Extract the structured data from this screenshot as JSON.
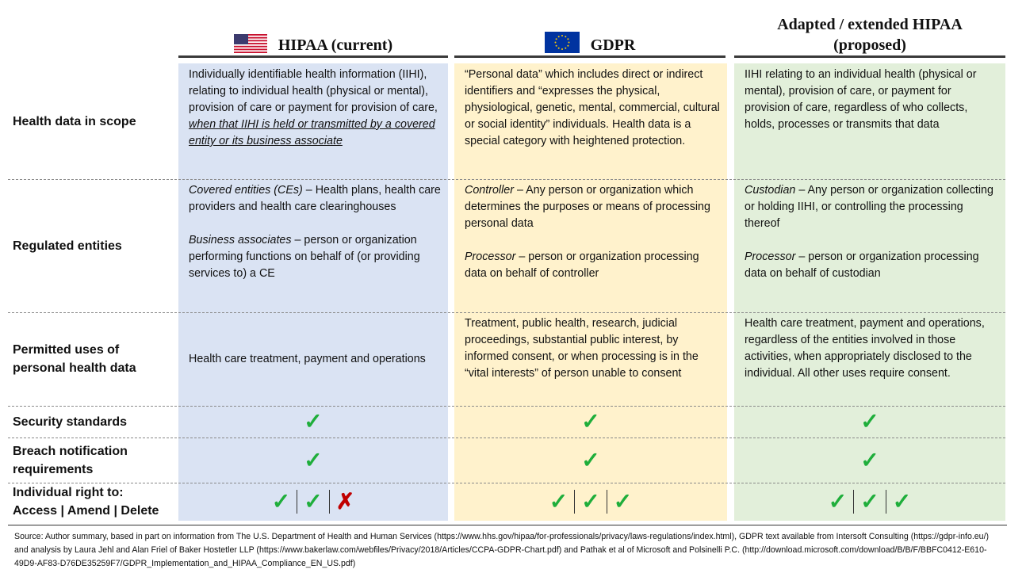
{
  "columns": [
    {
      "title": [
        "HIPAA (current)"
      ]
    },
    {
      "title": [
        "GDPR"
      ]
    },
    {
      "title": [
        "Adapted / extended HIPAA",
        "(proposed)"
      ]
    }
  ],
  "rows": [
    {
      "label": [
        "Health data in scope"
      ],
      "cells": [
        [
          [
            {
              "text": "Individually identifiable health information (IIHI), relating to individual health (physical or mental), provision of care or payment for provision of care, "
            },
            {
              "text": "when that IIHI is held or transmitted by a covered entity or its business associate",
              "style": "italic underline"
            }
          ]
        ],
        [
          [
            {
              "text": "“Personal data” which includes direct or indirect identifiers and “expresses the physical, physiological, genetic, mental, commercial, cultural or social identity” individuals.  Health data is a special category with heightened protection."
            }
          ]
        ],
        [
          [
            {
              "text": "IIHI relating to an individual health (physical or mental), provision of care, or payment for provision of care, regardless of who collects, holds, processes or transmits that data"
            }
          ]
        ]
      ]
    },
    {
      "label": [
        "Regulated entities"
      ],
      "cells": [
        [
          [
            {
              "text": "Covered entities (CEs)",
              "style": "italic"
            },
            {
              "text": " – Health plans, health care providers and health care clearinghouses"
            }
          ],
          [
            {
              "text": "Business associates",
              "style": "italic"
            },
            {
              "text": " – person or organization performing functions on behalf of (or providing services to) a CE"
            }
          ]
        ],
        [
          [
            {
              "text": "Controller",
              "style": "italic"
            },
            {
              "text": " – Any person or organization which determines the purposes or means of processing personal data"
            }
          ],
          [
            {
              "text": "Processor",
              "style": "italic"
            },
            {
              "text": " – person or organization processing data on behalf of controller"
            }
          ]
        ],
        [
          [
            {
              "text": "Custodian",
              "style": "italic"
            },
            {
              "text": " – Any person or organization collecting or holding IIHI, or controlling the processing thereof"
            }
          ],
          [
            {
              "text": "Processor",
              "style": "italic"
            },
            {
              "text": " – person or organization processing data on behalf of custodian"
            }
          ]
        ]
      ]
    },
    {
      "label": [
        "Permitted uses of",
        "personal health data"
      ],
      "cells": [
        [
          [
            {
              "text": "Health care treatment, payment and operations"
            }
          ]
        ],
        [
          [
            {
              "text": "Treatment, public health, research, judicial proceedings, substantial public interest, by informed consent, or when processing is in the “vital interests” of person unable to consent"
            }
          ]
        ],
        [
          [
            {
              "text": "Health care treatment, payment and operations, regardless of the entities involved in those activities, when appropriately disclosed to the individual. All other uses require consent."
            }
          ]
        ]
      ]
    },
    {
      "label": [
        "Security standards"
      ],
      "marks": [
        [
          "✓"
        ],
        [
          "✓"
        ],
        [
          "✓"
        ]
      ]
    },
    {
      "label": [
        "Breach notification",
        "requirements"
      ],
      "marks": [
        [
          "✓"
        ],
        [
          "✓"
        ],
        [
          "✓"
        ]
      ]
    },
    {
      "label": [
        "Individual right to:",
        "Access | Amend | Delete"
      ],
      "marks": [
        [
          "✓",
          "✓",
          "✗"
        ],
        [
          "✓",
          "✓",
          "✓"
        ],
        [
          "✓",
          "✓",
          "✓"
        ]
      ]
    }
  ],
  "source": "Source: Author summary, based in part on information from The U.S. Department of Health and Human Services (https://www.hhs.gov/hipaa/for-professionals/privacy/laws-regulations/index.html), GDPR text available from Intersoft Consulting (https://gdpr-info.eu/) and analysis by Laura Jehl and Alan Friel of Baker Hostetler LLP (https://www.bakerlaw.com/webfiles/Privacy/2018/Articles/CCPA-GDPR-Chart.pdf) and Pathak et al of Microsoft and Polsinelli P.C. (http://download.microsoft.com/download/B/B/F/BBFC0412-E610-49D9-AF83-D76DE35259F7/GDPR_Implementation_and_HIPAA_Compliance_EN_US.pdf)"
}
